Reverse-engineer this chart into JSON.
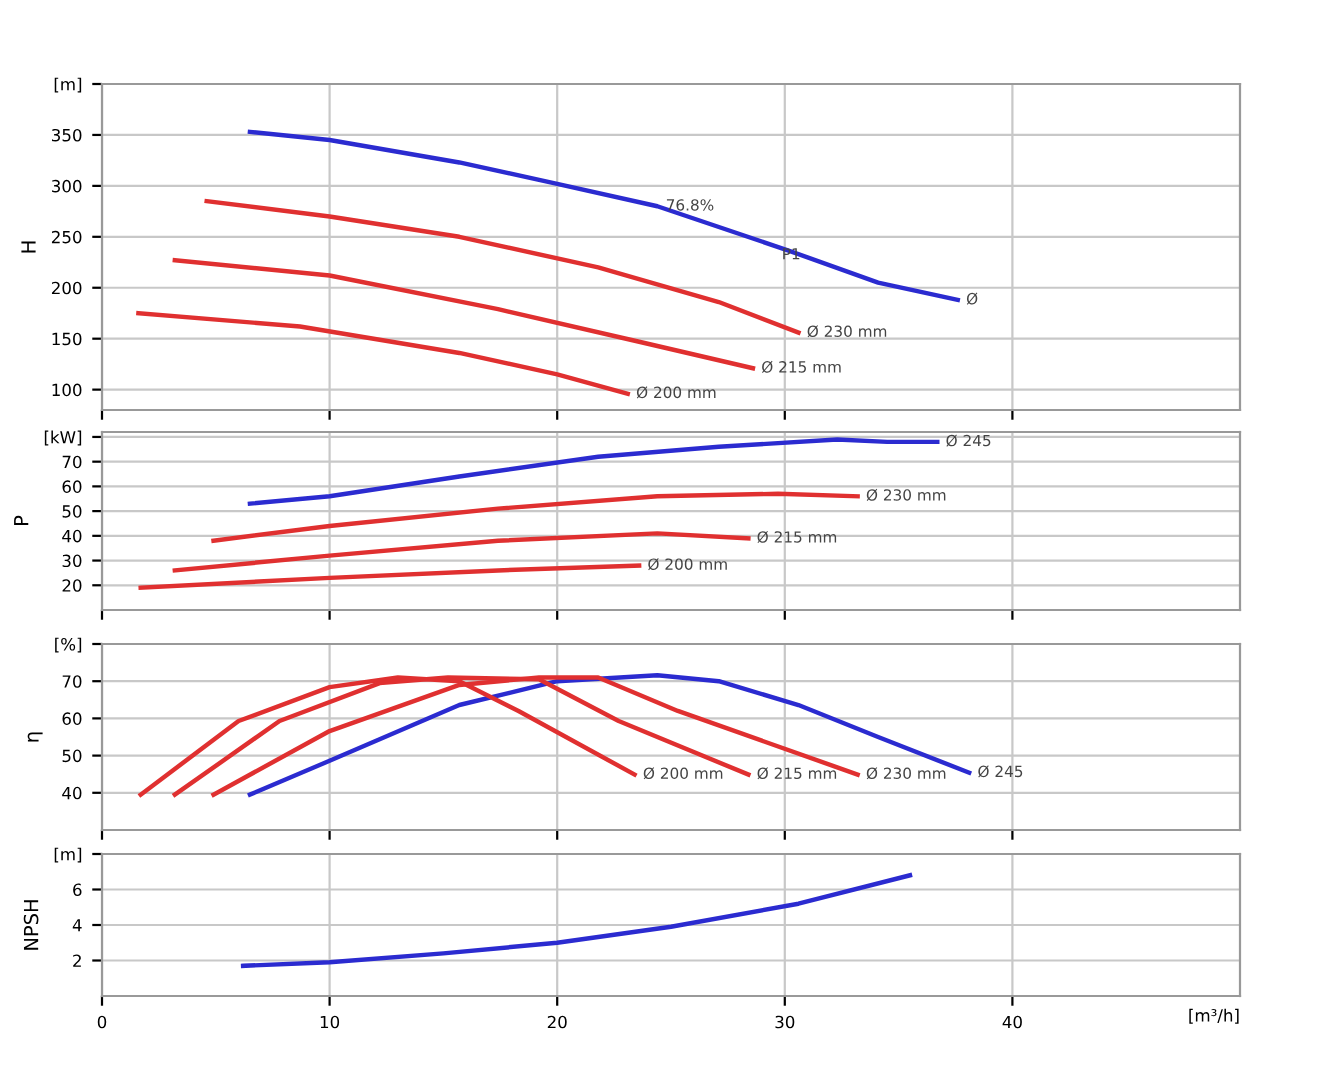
{
  "chart_data": [
    {
      "type": "line",
      "ylabel": "H",
      "xlim": [
        0,
        50
      ],
      "ylim": [
        80,
        400
      ],
      "xticks": [
        0,
        10,
        20,
        30,
        40
      ],
      "yticks": [
        100,
        150,
        200,
        250,
        300,
        350,
        {
          "value": 400,
          "label": "[m]"
        }
      ],
      "grid": true,
      "tick_labels": "y",
      "series": [
        {
          "color": "#2b2bd0",
          "x": [
            6.5,
            10,
            15.7,
            20,
            24.4,
            30.1,
            34.1,
            37.6
          ],
          "values": [
            353,
            345,
            323,
            302,
            280,
            237,
            205,
            188
          ]
        },
        {
          "color": "#e03030",
          "x": [
            4.6,
            10,
            15.7,
            21.8,
            27.1,
            30.6
          ],
          "values": [
            285,
            270,
            250,
            220,
            186,
            156
          ]
        },
        {
          "color": "#e03030",
          "x": [
            3.2,
            10,
            17.4,
            23.6,
            28.6
          ],
          "values": [
            227,
            212,
            179,
            147,
            121
          ]
        },
        {
          "color": "#e03030",
          "x": [
            1.6,
            8.7,
            15.7,
            20,
            23.1
          ],
          "values": [
            175,
            162,
            136,
            115,
            96
          ]
        }
      ],
      "annotations": [
        {
          "text": "Ø",
          "x": 37.6,
          "y": 188
        },
        {
          "text": "Ø 230 mm",
          "x": 30.6,
          "y": 156
        },
        {
          "text": "Ø 215 mm",
          "x": 28.6,
          "y": 121
        },
        {
          "text": "Ø 200 mm",
          "x": 23.1,
          "y": 96
        },
        {
          "text": "76.8%",
          "x": 24.4,
          "y": 280
        },
        {
          "text": "P1",
          "x": 29.5,
          "y": 232
        }
      ]
    },
    {
      "type": "line",
      "ylabel": "P",
      "xlim": [
        0,
        50
      ],
      "ylim": [
        10,
        82
      ],
      "xticks": [
        0,
        10,
        20,
        30,
        40
      ],
      "yticks": [
        20,
        30,
        40,
        50,
        60,
        70,
        {
          "value": 80,
          "label": "[kW]"
        }
      ],
      "grid": true,
      "tick_labels": "y",
      "series": [
        {
          "color": "#2b2bd0",
          "x": [
            6.5,
            10,
            15.7,
            21.8,
            27.1,
            32.3,
            34.5,
            36.7
          ],
          "values": [
            53,
            56,
            64,
            72,
            76,
            79,
            78,
            78
          ]
        },
        {
          "color": "#e03030",
          "x": [
            4.9,
            10,
            17.4,
            24.4,
            29.7,
            33.2
          ],
          "values": [
            38,
            44,
            51,
            56,
            57,
            56
          ]
        },
        {
          "color": "#e03030",
          "x": [
            3.2,
            10,
            17.4,
            24.4,
            28.4
          ],
          "values": [
            26,
            32,
            38,
            41,
            39
          ]
        },
        {
          "color": "#e03030",
          "x": [
            1.7,
            10,
            17.4,
            23.6
          ],
          "values": [
            19,
            23,
            26,
            28
          ]
        }
      ],
      "annotations": [
        {
          "text": "Ø 245",
          "x": 36.7,
          "y": 78
        },
        {
          "text": "Ø 230 mm",
          "x": 33.2,
          "y": 56
        },
        {
          "text": "Ø 215 mm",
          "x": 28.4,
          "y": 39
        },
        {
          "text": "Ø 200 mm",
          "x": 23.6,
          "y": 28
        }
      ]
    },
    {
      "type": "line",
      "ylabel": "η",
      "xlim": [
        0,
        50
      ],
      "ylim": [
        30,
        80
      ],
      "xticks": [
        0,
        10,
        20,
        30,
        40
      ],
      "yticks": [
        40,
        50,
        60,
        70,
        {
          "value": 80,
          "label": "[%]"
        }
      ],
      "grid": true,
      "tick_labels": "y",
      "series": [
        {
          "color": "#2b2bd0",
          "x": [
            6.5,
            10,
            15.7,
            20,
            24.4,
            27.1,
            30.6,
            34.1,
            38.1
          ],
          "values": [
            39.5,
            48.6,
            63.6,
            70,
            71.6,
            70,
            63.6,
            55,
            45.4
          ]
        },
        {
          "color": "#e03030",
          "x": [
            1.7,
            6,
            10,
            13,
            15.7,
            18.3,
            23.4
          ],
          "values": [
            39.5,
            59.3,
            68.4,
            71,
            70,
            62,
            44.9
          ]
        },
        {
          "color": "#e03030",
          "x": [
            3.2,
            7.8,
            12.2,
            15.2,
            19.2,
            22.7,
            28.4
          ],
          "values": [
            39.5,
            59.3,
            69.5,
            71,
            70.5,
            59.3,
            44.9
          ]
        },
        {
          "color": "#e03030",
          "x": [
            4.9,
            10,
            15.7,
            19.2,
            21.8,
            25.3,
            33.2
          ],
          "values": [
            39.5,
            56.6,
            69,
            71,
            71,
            62,
            44.9
          ]
        }
      ],
      "annotations": [
        {
          "text": "Ø 200 mm",
          "x": 23.4,
          "y": 44.9
        },
        {
          "text": "Ø 215 mm",
          "x": 28.4,
          "y": 44.9
        },
        {
          "text": "Ø 230 mm",
          "x": 33.2,
          "y": 44.9
        },
        {
          "text": "Ø 245",
          "x": 38.1,
          "y": 45.4
        }
      ]
    },
    {
      "type": "line",
      "ylabel": "NPSH",
      "xlabel": "[m³/h]",
      "xlim": [
        0,
        50
      ],
      "ylim": [
        0,
        8
      ],
      "xticks": [
        0,
        10,
        20,
        30,
        40
      ],
      "yticks": [
        2,
        4,
        6,
        {
          "value": 8,
          "label": "[m]"
        }
      ],
      "grid": true,
      "series": [
        {
          "color": "#2b2bd0",
          "x": [
            6.2,
            10,
            15,
            20,
            25,
            30.6,
            35.5
          ],
          "values": [
            1.7,
            1.9,
            2.4,
            3.0,
            3.9,
            5.2,
            6.8
          ]
        }
      ]
    }
  ]
}
